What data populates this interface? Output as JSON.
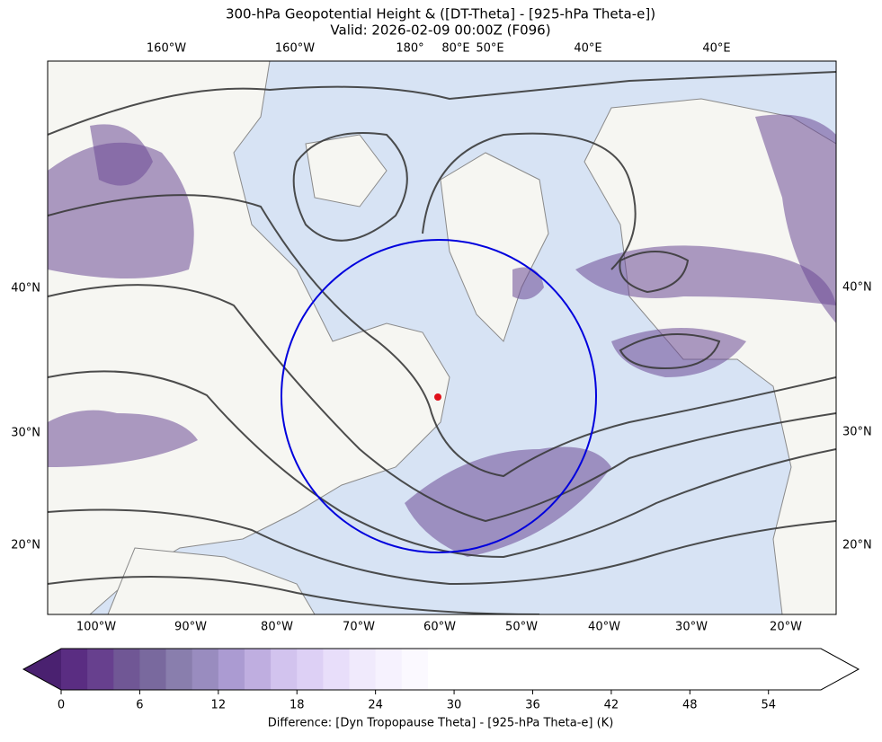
{
  "header": {
    "title": "300-hPa Geopotential Height & ([DT-Theta] - [925-hPa Theta-e])",
    "subtitle": "Valid: 2026-02-09 00:00Z (F096)"
  },
  "map": {
    "top_labels": [
      "160°W",
      "160°W",
      "180°",
      "80°E",
      "50°E",
      "40°E",
      "40°E"
    ],
    "bottom_labels": [
      "100°W",
      "90°W",
      "80°W",
      "70°W",
      "60°W",
      "50°W",
      "40°W",
      "30°W",
      "20°W"
    ],
    "left_labels": [
      "40°N",
      "30°N",
      "20°N"
    ],
    "right_labels": [
      "40°N",
      "30°N",
      "20°N"
    ]
  },
  "colorbar": {
    "label": "Difference: [Dyn Tropopause Theta] - [925-hPa Theta-e] (K)",
    "lim": [
      0,
      58
    ],
    "ticks": [
      0,
      6,
      12,
      18,
      24,
      30,
      36,
      42,
      48,
      54
    ],
    "bounds": [
      0,
      2,
      4,
      6,
      8,
      10,
      12,
      14,
      16,
      18,
      20,
      22,
      24,
      26,
      28,
      58
    ],
    "colors": [
      "#5a2d82",
      "#67408e",
      "#705795",
      "#79699e",
      "#897ead",
      "#998cbf",
      "#ab9bd2",
      "#bfaee0",
      "#d2c3ee",
      "#ddd0f5",
      "#e8defa",
      "#f0eafc",
      "#f6f2fe",
      "#fbf9ff",
      "#ffffff"
    ],
    "under_color": "#4a2170"
  }
}
